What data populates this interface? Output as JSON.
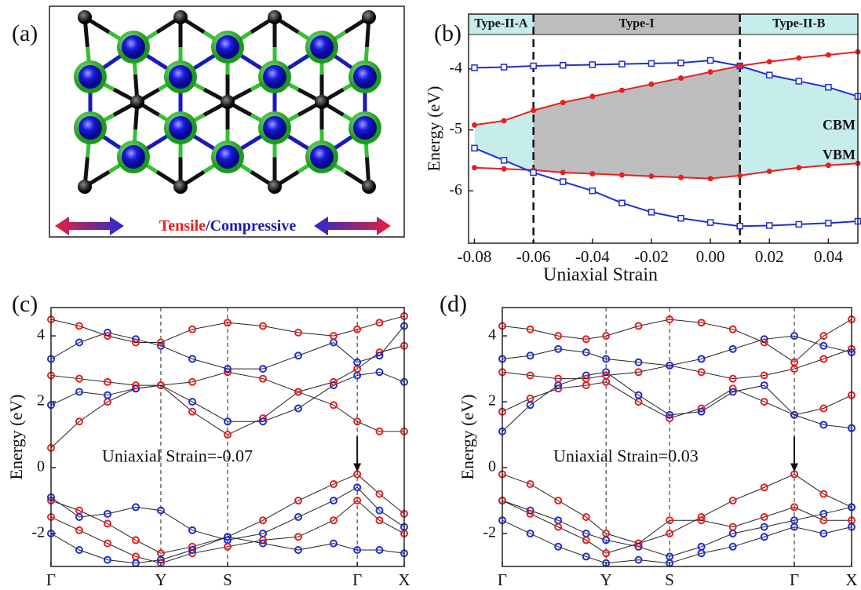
{
  "panel_a": {
    "label": "(a)",
    "tensile": "Tensile",
    "separator": "/",
    "compressive": "Compressive"
  },
  "chart_data": [
    {
      "type": "line",
      "label": "(b)",
      "xlabel": "Uniaxial Strain",
      "ylabel": "Energy (eV)",
      "x": [
        -0.08,
        -0.07,
        -0.06,
        -0.05,
        -0.04,
        -0.03,
        -0.02,
        -0.01,
        0,
        0.01,
        0.02,
        0.03,
        0.04,
        0.05
      ],
      "series": [
        {
          "color": "#1f2fd0",
          "marker": "square",
          "values": [
            -3.98,
            -3.97,
            -3.95,
            -3.94,
            -3.93,
            -3.92,
            -3.91,
            -3.9,
            -3.86,
            -3.95,
            -4.1,
            -4.2,
            -4.3,
            -4.45
          ]
        },
        {
          "color": "#e8201e",
          "marker": "circle",
          "values": [
            -4.92,
            -4.85,
            -4.68,
            -4.55,
            -4.45,
            -4.35,
            -4.25,
            -4.15,
            -4.05,
            -3.95,
            -3.88,
            -3.82,
            -3.77,
            -3.72
          ]
        },
        {
          "color": "#e8201e",
          "marker": "circle",
          "values": [
            -5.62,
            -5.64,
            -5.66,
            -5.7,
            -5.72,
            -5.74,
            -5.76,
            -5.78,
            -5.8,
            -5.75,
            -5.68,
            -5.62,
            -5.58,
            -5.55
          ]
        },
        {
          "color": "#1f2fd0",
          "marker": "square",
          "values": [
            -5.3,
            -5.5,
            -5.7,
            -5.85,
            -6.0,
            -6.2,
            -6.35,
            -6.45,
            -6.52,
            -6.58,
            -6.57,
            -6.55,
            -6.53,
            -6.5
          ]
        }
      ],
      "xlim": [
        -0.082,
        0.05
      ],
      "ylim": [
        -6.86,
        -3.1
      ],
      "xticks": [
        -0.08,
        -0.06,
        -0.04,
        -0.02,
        {
          "value": 0,
          "label": "0.00"
        },
        0.02,
        0.04
      ],
      "yticks": [
        -6,
        -5,
        -4
      ],
      "boundaries": [
        -0.06,
        0.01
      ],
      "regions": [
        {
          "label": "Type-II-A",
          "color": "#c6ecec",
          "between": [
            1,
            3
          ]
        },
        {
          "label": "Type-I",
          "color": "#bdbdbd",
          "between": [
            1,
            2
          ]
        },
        {
          "label": "Type-II-B",
          "color": "#c6ecec",
          "between": [
            0,
            2
          ]
        }
      ],
      "annotations": [
        "CBM",
        "VBM"
      ]
    },
    {
      "type": "line",
      "label": "(c)",
      "ylabel": "Energy (eV)",
      "x": [
        0,
        0.08,
        0.16,
        0.24,
        0.311,
        0.4,
        0.5,
        0.6,
        0.7,
        0.8,
        0.867,
        0.93,
        1
      ],
      "series": [
        {
          "color": "#e8201e",
          "marker": "ring",
          "values": [
            0.6,
            1.4,
            2.0,
            2.4,
            2.5,
            1.7,
            1.0,
            1.5,
            2.3,
            1.9,
            1.4,
            1.1,
            1.1
          ]
        },
        {
          "color": "#1f2fd0",
          "marker": "ring",
          "values": [
            1.9,
            2.3,
            2.2,
            2.4,
            2.5,
            2.0,
            1.4,
            1.4,
            1.8,
            2.5,
            2.8,
            2.9,
            2.6
          ]
        },
        {
          "color": "#e8201e",
          "marker": "ring",
          "values": [
            2.8,
            2.7,
            2.6,
            2.5,
            2.5,
            2.6,
            2.9,
            2.7,
            2.3,
            2.6,
            3.0,
            3.5,
            3.7
          ]
        },
        {
          "color": "#1f2fd0",
          "marker": "ring",
          "values": [
            3.3,
            3.8,
            4.1,
            3.9,
            3.7,
            3.3,
            3.0,
            3.0,
            3.4,
            3.8,
            3.2,
            3.4,
            4.3
          ]
        },
        {
          "color": "#e8201e",
          "marker": "ring",
          "values": [
            4.5,
            4.3,
            4.0,
            3.8,
            3.8,
            4.2,
            4.4,
            4.3,
            4.1,
            4.0,
            4.2,
            4.4,
            4.6
          ]
        },
        {
          "color": "#e8201e",
          "marker": "ring",
          "values": [
            -1.0,
            -1.3,
            -1.7,
            -2.2,
            -2.6,
            -2.4,
            -2.1,
            -1.6,
            -1.0,
            -0.5,
            -0.2,
            -0.8,
            -1.4
          ]
        },
        {
          "color": "#1f2fd0",
          "marker": "ring",
          "values": [
            -0.9,
            -1.5,
            -1.4,
            -1.2,
            -1.3,
            -1.9,
            -2.2,
            -2.0,
            -1.5,
            -1.0,
            -0.6,
            -1.3,
            -1.8
          ]
        },
        {
          "color": "#e8201e",
          "marker": "ring",
          "values": [
            -1.5,
            -1.9,
            -2.3,
            -2.7,
            -2.9,
            -2.6,
            -2.4,
            -2.2,
            -2.1,
            -1.6,
            -1.0,
            -1.6,
            -2.0
          ]
        },
        {
          "color": "#1f2fd0",
          "marker": "ring",
          "values": [
            -2.0,
            -2.5,
            -2.8,
            -2.9,
            -2.8,
            -2.5,
            -2.1,
            -2.3,
            -2.5,
            -2.3,
            -2.5,
            -2.5,
            -2.6
          ]
        }
      ],
      "xlim": [
        0,
        1
      ],
      "ylim": [
        -3,
        4.86
      ],
      "xticks": [
        {
          "value": 0,
          "label": "Γ"
        },
        {
          "value": 0.311,
          "label": "Y"
        },
        {
          "value": 0.5,
          "label": "S"
        },
        {
          "value": 0.867,
          "label": "Γ"
        },
        {
          "value": 1,
          "label": "X"
        }
      ],
      "yticks": [
        -2,
        0,
        2,
        4
      ],
      "xgrid": true,
      "arrow_tick": 3,
      "annotations": [
        "Uniaxial Strain=-0.07"
      ]
    },
    {
      "type": "line",
      "label": "(d)",
      "ylabel": "Energy (eV)",
      "x": [
        0,
        0.08,
        0.16,
        0.24,
        0.297,
        0.39,
        0.479,
        0.57,
        0.66,
        0.75,
        0.836,
        0.92,
        1
      ],
      "series": [
        {
          "color": "#e8201e",
          "marker": "ring",
          "values": [
            1.7,
            2.1,
            2.4,
            2.5,
            2.6,
            2.0,
            1.5,
            1.8,
            2.4,
            2.0,
            1.6,
            1.8,
            2.2
          ]
        },
        {
          "color": "#1f2fd0",
          "marker": "ring",
          "values": [
            1.1,
            1.9,
            2.5,
            2.8,
            2.9,
            2.2,
            1.6,
            1.7,
            2.3,
            2.5,
            1.6,
            1.3,
            1.2
          ]
        },
        {
          "color": "#e8201e",
          "marker": "ring",
          "values": [
            2.9,
            2.8,
            2.7,
            2.7,
            2.8,
            2.9,
            3.1,
            2.9,
            2.7,
            2.8,
            3.0,
            3.3,
            3.6
          ]
        },
        {
          "color": "#1f2fd0",
          "marker": "ring",
          "values": [
            3.3,
            3.4,
            3.6,
            3.5,
            3.3,
            3.2,
            3.1,
            3.3,
            3.6,
            3.9,
            4.0,
            3.7,
            3.5
          ]
        },
        {
          "color": "#e8201e",
          "marker": "ring",
          "values": [
            4.3,
            4.2,
            4.0,
            3.9,
            4.0,
            4.3,
            4.5,
            4.4,
            4.2,
            3.8,
            3.2,
            4.0,
            4.5
          ]
        },
        {
          "color": "#e8201e",
          "marker": "ring",
          "values": [
            -0.2,
            -0.5,
            -1.0,
            -1.5,
            -2.0,
            -2.3,
            -2.0,
            -1.5,
            -1.0,
            -0.6,
            -0.2,
            -0.8,
            -1.2
          ]
        },
        {
          "color": "#1f2fd0",
          "marker": "ring",
          "values": [
            -1.0,
            -1.3,
            -1.6,
            -2.0,
            -2.2,
            -2.4,
            -2.7,
            -2.4,
            -2.0,
            -1.8,
            -1.6,
            -1.4,
            -1.2
          ]
        },
        {
          "color": "#e8201e",
          "marker": "ring",
          "values": [
            -1.0,
            -1.4,
            -1.8,
            -2.2,
            -2.6,
            -2.3,
            -1.6,
            -1.6,
            -1.8,
            -1.5,
            -1.2,
            -1.6,
            -1.6
          ]
        },
        {
          "color": "#1f2fd0",
          "marker": "ring",
          "values": [
            -1.6,
            -2.0,
            -2.4,
            -2.7,
            -2.9,
            -2.8,
            -2.9,
            -2.6,
            -2.4,
            -2.1,
            -1.8,
            -2.0,
            -1.8
          ]
        }
      ],
      "xlim": [
        0,
        1
      ],
      "ylim": [
        -3,
        4.86
      ],
      "xticks": [
        {
          "value": 0,
          "label": "Γ"
        },
        {
          "value": 0.297,
          "label": "Y"
        },
        {
          "value": 0.479,
          "label": "S"
        },
        {
          "value": 0.836,
          "label": "Γ"
        },
        {
          "value": 1,
          "label": "X"
        }
      ],
      "yticks": [
        -2,
        0,
        2,
        4
      ],
      "xgrid": true,
      "arrow_tick": 3,
      "annotations": [
        "Uniaxial Strain=0.03"
      ]
    }
  ]
}
